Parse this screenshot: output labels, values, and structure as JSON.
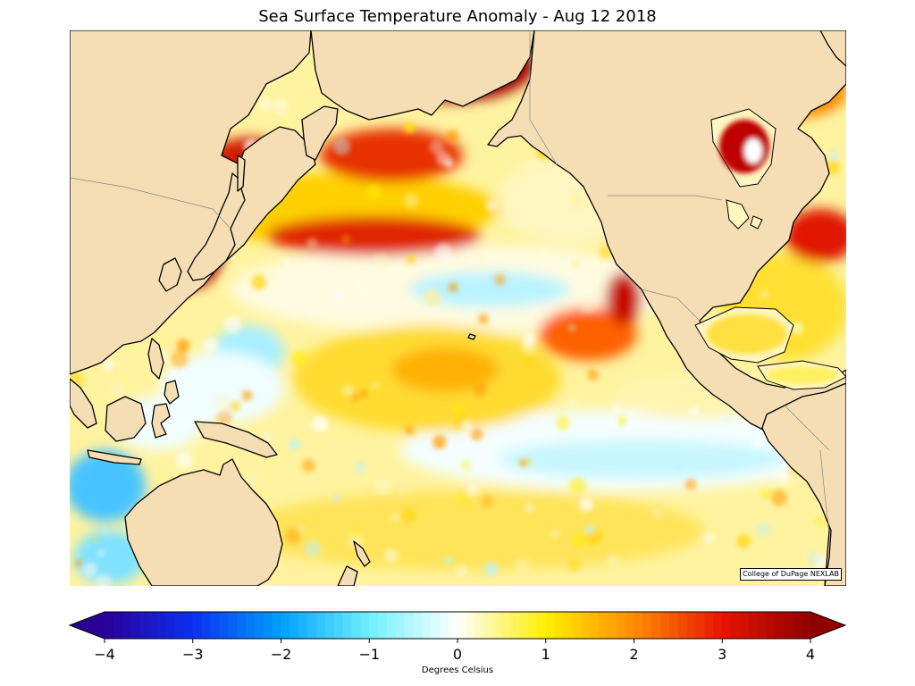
{
  "title": "Sea Surface Temperature Anomaly - Aug 12 2018",
  "credit": "College of DuPage NEXLAB",
  "colorbar": {
    "label": "Degrees Celsius",
    "min": -4,
    "max": 4,
    "extend": "both",
    "ticks": [
      "−4",
      "−3",
      "−2",
      "−1",
      "0",
      "1",
      "2",
      "3",
      "4"
    ],
    "tick_values": [
      -4,
      -3,
      -2,
      -1,
      0,
      1,
      2,
      3,
      4
    ],
    "stops": [
      {
        "v": -4,
        "c": "#2a0096"
      },
      {
        "v": -3,
        "c": "#0a30f0"
      },
      {
        "v": -2,
        "c": "#00a0ff"
      },
      {
        "v": -1,
        "c": "#70f0ff"
      },
      {
        "v": 0,
        "c": "#ffffff"
      },
      {
        "v": 1,
        "c": "#ffee00"
      },
      {
        "v": 2,
        "c": "#ff8c00"
      },
      {
        "v": 3,
        "c": "#e81400"
      },
      {
        "v": 4,
        "c": "#900000"
      }
    ]
  },
  "colors": {
    "land": "#f5deb3",
    "coast": "#000000",
    "ocean_base": "#fff4a0"
  },
  "map": {
    "projection": "equirectangular",
    "region": "North Pacific Ocean"
  }
}
